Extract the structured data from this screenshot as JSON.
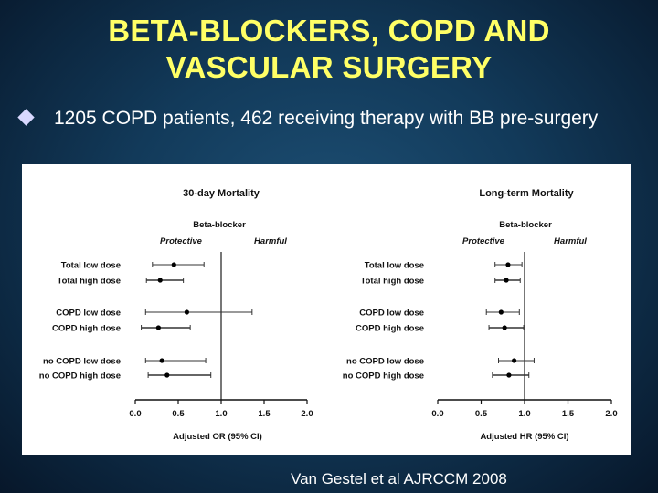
{
  "slide": {
    "title_line1": "BETA-BLOCKERS, COPD AND",
    "title_line2": "VASCULAR SURGERY",
    "bullet": "1205 COPD patients, 462 receiving therapy  with BB pre-surgery",
    "citation": "Van Gestel et al AJRCCM 2008"
  },
  "colors": {
    "title": "#ffff66",
    "text": "#ffffff",
    "bullet": "#d8d8ff"
  },
  "chart_data": [
    {
      "type": "forest",
      "title": "30-day Mortality",
      "subtitle": "Beta-blocker",
      "left_label": "Protective",
      "right_label": "Harmful",
      "xlabel": "Adjusted OR (95% CI)",
      "xlim": [
        0.0,
        2.0
      ],
      "reference": 1.0,
      "ticks": [
        "0.0",
        "0.5",
        "1.0",
        "1.5",
        "2.0"
      ],
      "categories": [
        "Total low dose",
        "Total high dose",
        "COPD low dose",
        "COPD high dose",
        "no COPD low dose",
        "no COPD high dose"
      ],
      "estimates": [
        0.45,
        0.29,
        0.6,
        0.27,
        0.31,
        0.37
      ],
      "lower": [
        0.2,
        0.13,
        0.12,
        0.07,
        0.12,
        0.15
      ],
      "upper": [
        0.8,
        0.56,
        1.36,
        0.64,
        0.82,
        0.88
      ]
    },
    {
      "type": "forest",
      "title": "Long-term Mortality",
      "subtitle": "Beta-blocker",
      "left_label": "Protective",
      "right_label": "Harmful",
      "xlabel": "Adjusted HR (95% CI)",
      "xlim": [
        0.0,
        2.0
      ],
      "reference": 1.0,
      "ticks": [
        "0.0",
        "0.5",
        "1.0",
        "1.5",
        "2.0"
      ],
      "categories": [
        "Total low dose",
        "Total high dose",
        "COPD low dose",
        "COPD high dose",
        "no COPD low dose",
        "no COPD high dose"
      ],
      "estimates": [
        0.81,
        0.79,
        0.73,
        0.77,
        0.88,
        0.82
      ],
      "lower": [
        0.66,
        0.66,
        0.56,
        0.59,
        0.7,
        0.63
      ],
      "upper": [
        0.97,
        0.95,
        0.94,
        0.99,
        1.11,
        1.05
      ]
    }
  ]
}
